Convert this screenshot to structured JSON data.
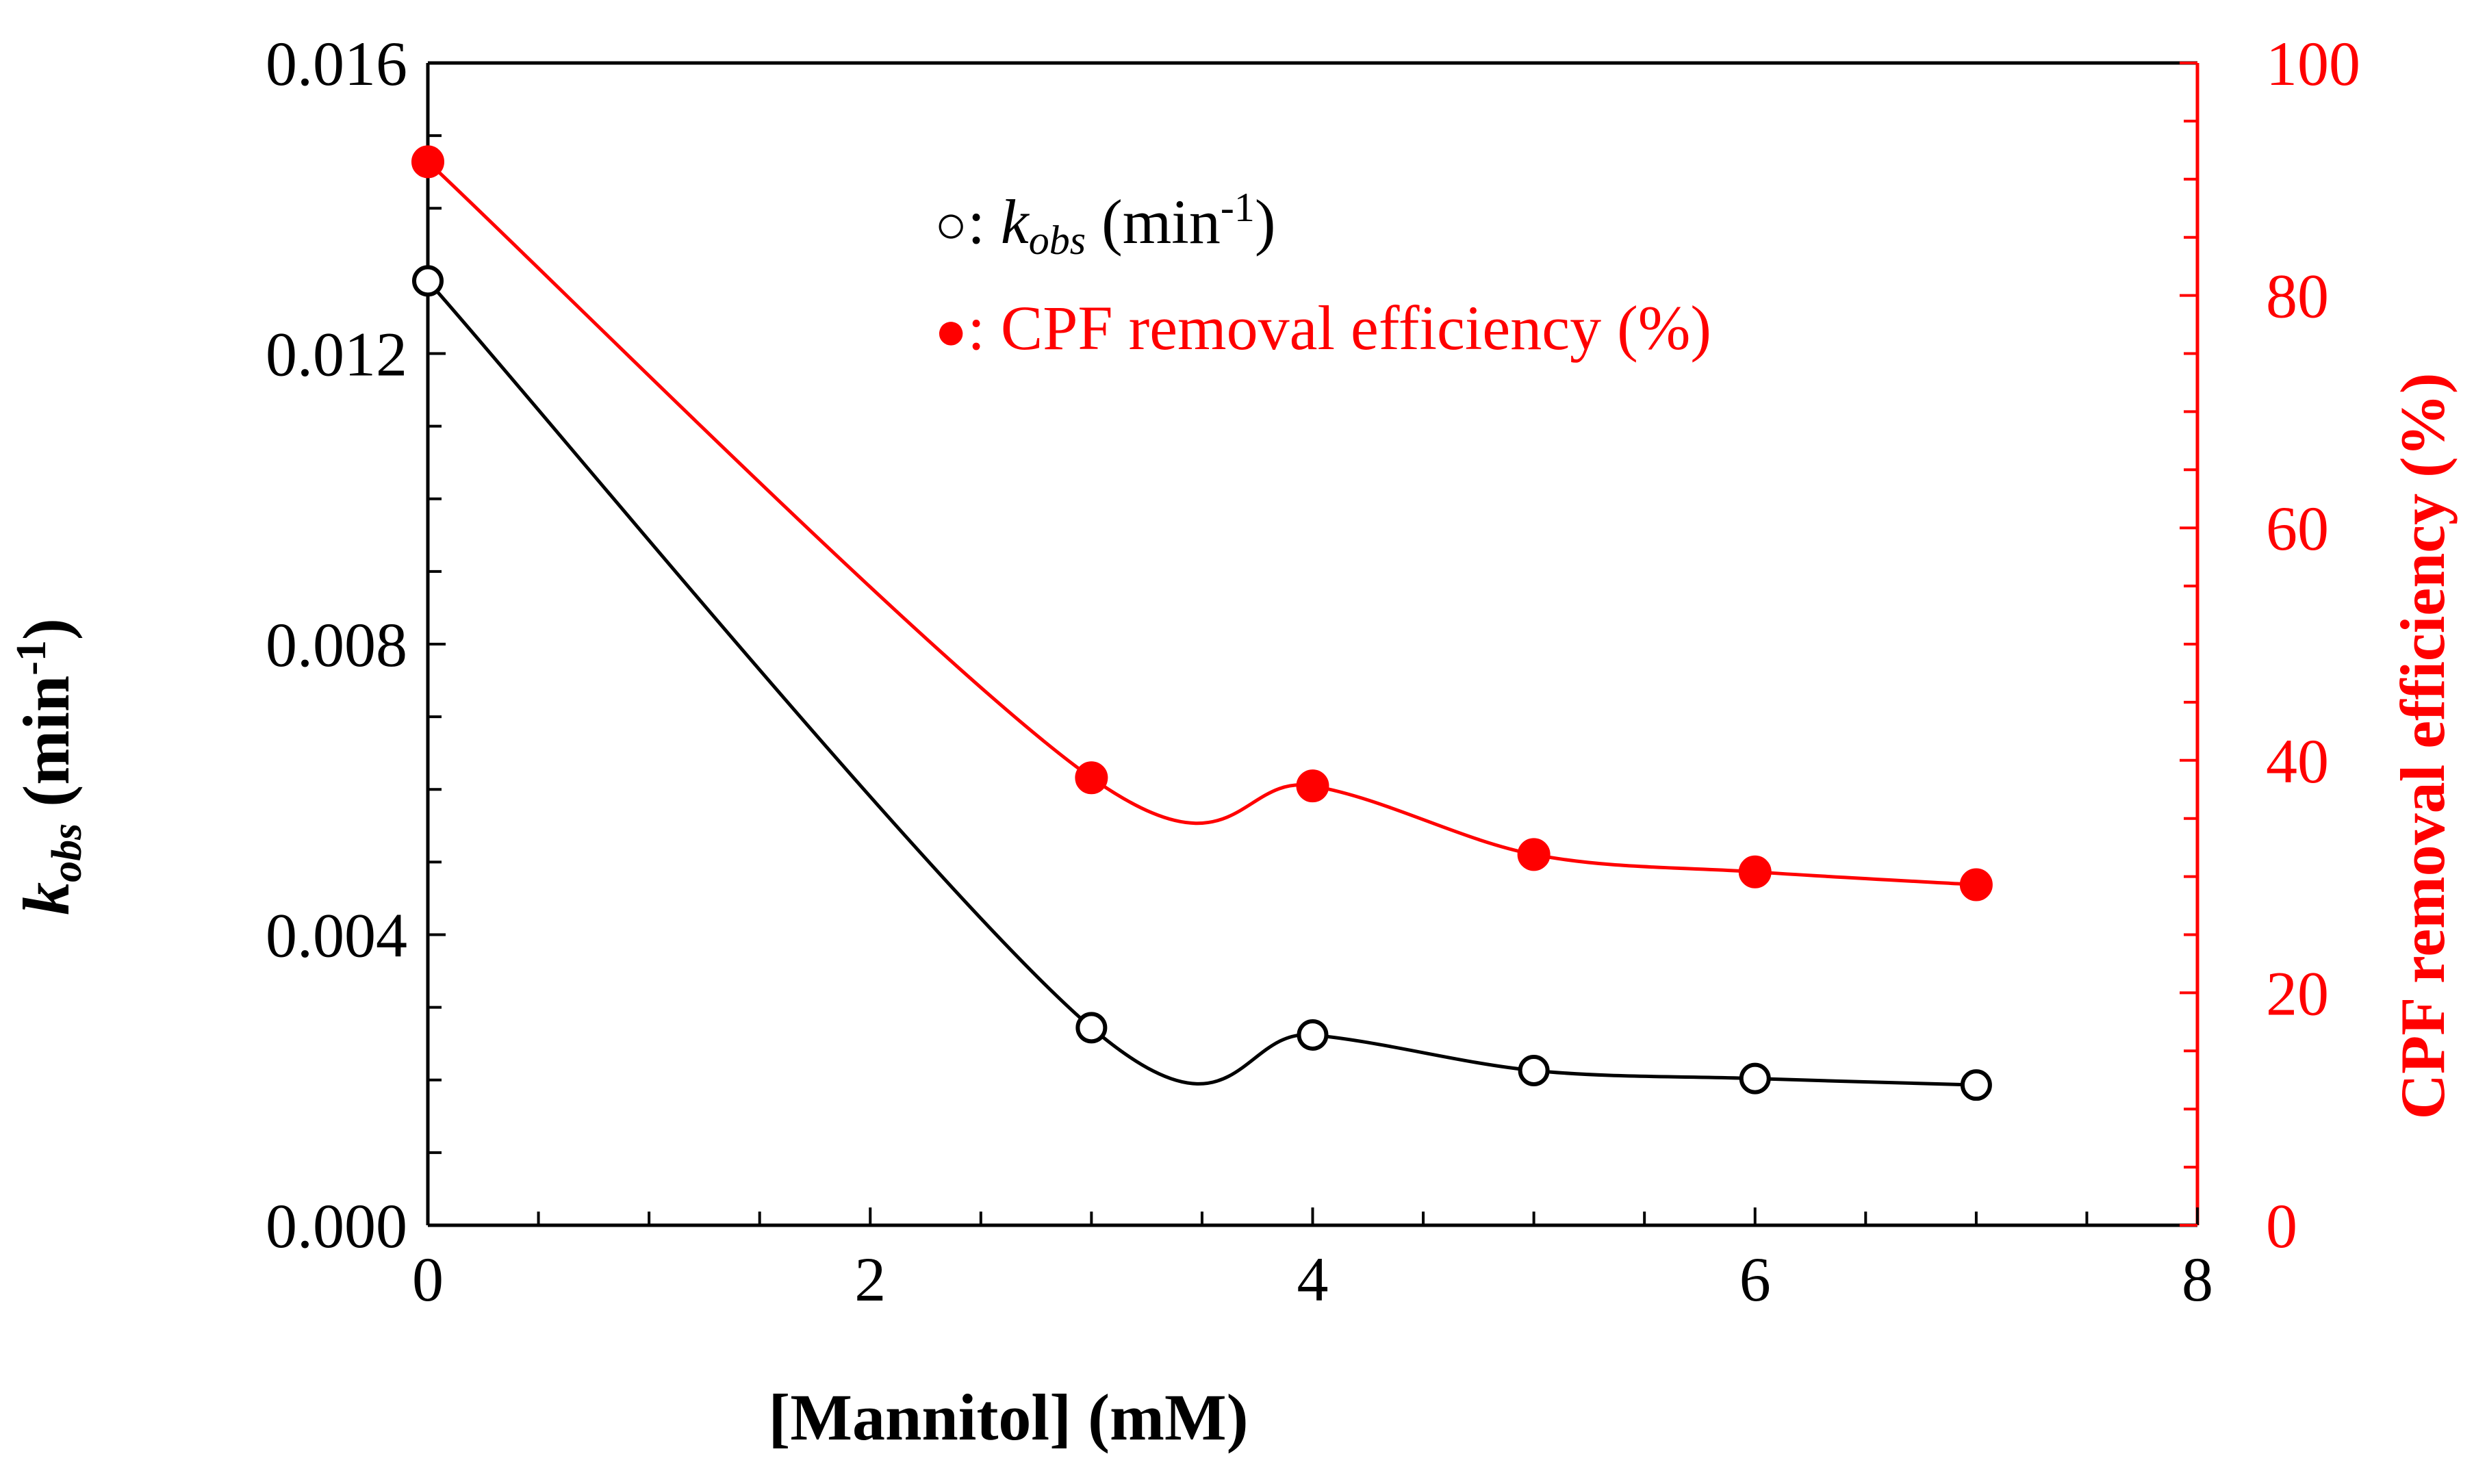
{
  "chart_data": {
    "type": "line",
    "x": [
      0,
      3,
      4,
      5,
      6,
      7
    ],
    "xlabel": "[Mannitol] (mM)",
    "xlim": [
      0,
      8
    ],
    "xticks": [
      0,
      2,
      4,
      6,
      8
    ],
    "xtick_labels": [
      "0",
      "2",
      "4",
      "6",
      "8"
    ],
    "left_axis": {
      "label_main": "k",
      "label_sub": "obs",
      "label_rest": " (min",
      "label_sup": "-1",
      "label_end": ")",
      "ylim": [
        0,
        0.016
      ],
      "ticks": [
        0,
        0.004,
        0.008,
        0.012,
        0.016
      ],
      "tick_labels": [
        "0.000",
        "0.004",
        "0.008",
        "0.012",
        "0.016"
      ],
      "color": "#000000"
    },
    "right_axis": {
      "label": "CPF removal efficiency (%)",
      "ylim": [
        0,
        100
      ],
      "ticks": [
        0,
        20,
        40,
        60,
        80,
        100
      ],
      "tick_labels": [
        "0",
        "20",
        "40",
        "60",
        "80",
        "100"
      ],
      "color": "#ff0000"
    },
    "series": [
      {
        "axis": "left",
        "marker": "open-circle",
        "color": "#000000",
        "values": [
          0.013,
          0.00272,
          0.00262,
          0.00213,
          0.00202,
          0.00193
        ]
      },
      {
        "axis": "right",
        "marker": "filled-circle",
        "color": "#ff0000",
        "values": [
          91.5,
          38.5,
          37.8,
          31.9,
          30.4,
          29.3
        ]
      }
    ],
    "legend": {
      "placement": "top-center",
      "entries": [
        {
          "symbol": "○",
          "sep": ": ",
          "main": "k",
          "sub": "obs",
          "rest": " (min",
          "sup": "-1",
          "end": ")",
          "color": "#000000"
        },
        {
          "symbol": "●",
          "sep": ": ",
          "text": "CPF removal efficiency (%)",
          "color": "#ff0000"
        }
      ]
    },
    "grid": false
  }
}
